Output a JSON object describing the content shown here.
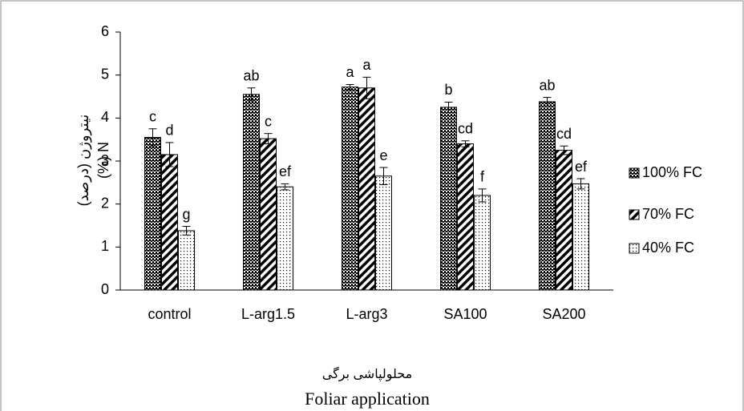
{
  "chart_data": {
    "type": "bar",
    "categories": [
      "control",
      "L-arg1.5",
      "L-arg3",
      "SA100",
      "SA200"
    ],
    "series": [
      {
        "name": "100% FC",
        "color": "#000000",
        "pattern": "checker",
        "values": [
          3.55,
          4.55,
          4.72,
          4.25,
          4.38
        ],
        "errors": [
          0.2,
          0.15,
          0.06,
          0.12,
          0.1
        ],
        "labels": [
          "c",
          "ab",
          "a",
          "b",
          "ab"
        ]
      },
      {
        "name": "70% FC",
        "color": "#000000",
        "pattern": "hatch",
        "values": [
          3.15,
          3.52,
          4.7,
          3.4,
          3.25
        ],
        "errors": [
          0.28,
          0.12,
          0.25,
          0.07,
          0.1
        ],
        "labels": [
          "d",
          "c",
          "a",
          "cd",
          "cd"
        ]
      },
      {
        "name": "40% FC",
        "color": "#000000",
        "pattern": "dots",
        "values": [
          1.38,
          2.4,
          2.65,
          2.2,
          2.47
        ],
        "errors": [
          0.1,
          0.07,
          0.2,
          0.15,
          0.12
        ],
        "labels": [
          "g",
          "ef",
          "e",
          "f",
          "ef"
        ]
      }
    ],
    "ylim": [
      0,
      6
    ],
    "yticks": [
      0,
      1,
      2,
      3,
      4,
      5,
      6
    ],
    "ylabel": [
      "نیتروژن (درصد)",
      "(%) N"
    ],
    "xlabel": [
      "محلولپاشی برگی",
      "Foliar application"
    ],
    "legend": "right",
    "grid": false
  }
}
